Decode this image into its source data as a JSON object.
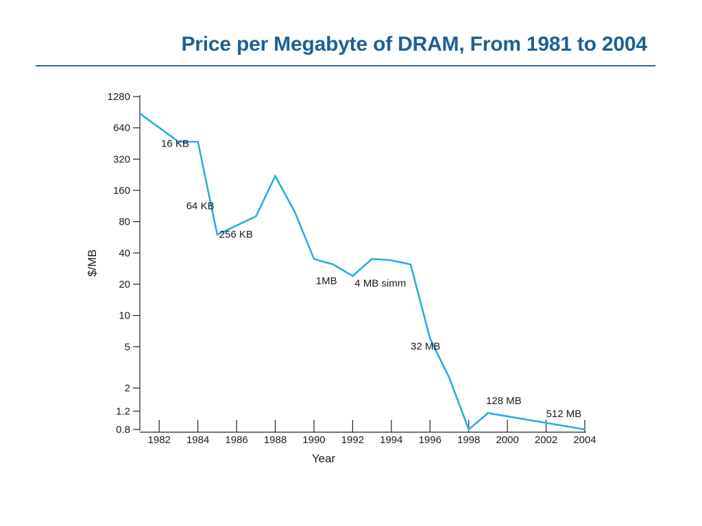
{
  "slide": {
    "title": "Price per Megabyte of DRAM, From 1981 to 2004",
    "title_color": "#1f5f94"
  },
  "chart_data": {
    "type": "line",
    "title": "",
    "xlabel": "Year",
    "ylabel": "$/MB",
    "yscale": "log",
    "ylim": [
      0.8,
      1280
    ],
    "xlim": [
      1981,
      2004
    ],
    "y_ticks": [
      {
        "value": 1280,
        "label": "1280"
      },
      {
        "value": 640,
        "label": "640"
      },
      {
        "value": 320,
        "label": "320"
      },
      {
        "value": 160,
        "label": "160"
      },
      {
        "value": 80,
        "label": "80"
      },
      {
        "value": 40,
        "label": "40"
      },
      {
        "value": 20,
        "label": "20"
      },
      {
        "value": 10,
        "label": "10"
      },
      {
        "value": 5,
        "label": "5"
      },
      {
        "value": 2,
        "label": "2"
      },
      {
        "value": 1.2,
        "label": "1.2"
      },
      {
        "value": 0.8,
        "label": "0.8"
      }
    ],
    "x_ticks": [
      {
        "value": 1982,
        "label": "1982"
      },
      {
        "value": 1984,
        "label": "1984"
      },
      {
        "value": 1986,
        "label": "1986"
      },
      {
        "value": 1988,
        "label": "1988"
      },
      {
        "value": 1990,
        "label": "1990"
      },
      {
        "value": 1992,
        "label": "1992"
      },
      {
        "value": 1994,
        "label": "1994"
      },
      {
        "value": 1996,
        "label": "1996"
      },
      {
        "value": 1998,
        "label": "1998"
      },
      {
        "value": 2000,
        "label": "2000"
      },
      {
        "value": 2002,
        "label": "2002"
      },
      {
        "value": 2004,
        "label": "2004"
      }
    ],
    "grid": false,
    "line_color": "#29abe2",
    "series": [
      {
        "points": [
          {
            "x": 1981,
            "y": 880
          },
          {
            "x": 1983,
            "y": 470
          },
          {
            "x": 1984,
            "y": 470
          },
          {
            "x": 1985,
            "y": 60
          },
          {
            "x": 1987,
            "y": 90
          },
          {
            "x": 1988,
            "y": 220
          },
          {
            "x": 1989,
            "y": 100
          },
          {
            "x": 1990,
            "y": 35
          },
          {
            "x": 1991,
            "y": 31
          },
          {
            "x": 1992,
            "y": 24
          },
          {
            "x": 1993,
            "y": 35
          },
          {
            "x": 1994,
            "y": 34
          },
          {
            "x": 1995,
            "y": 31
          },
          {
            "x": 1996,
            "y": 6
          },
          {
            "x": 1997,
            "y": 2.5
          },
          {
            "x": 1998,
            "y": 0.8
          },
          {
            "x": 1999,
            "y": 1.15
          },
          {
            "x": 2004,
            "y": 0.8
          }
        ]
      }
    ],
    "annotations": [
      {
        "text": "16 KB",
        "x": 1982.1,
        "y": 420
      },
      {
        "text": "64 KB",
        "x": 1983.4,
        "y": 105
      },
      {
        "text": "256 KB",
        "x": 1985.1,
        "y": 56
      },
      {
        "text": "1MB",
        "x": 1990.1,
        "y": 20
      },
      {
        "text": "4 MB simm",
        "x": 1992.1,
        "y": 19
      },
      {
        "text": "32 MB",
        "x": 1995.0,
        "y": 4.7
      },
      {
        "text": "128 MB",
        "x": 1998.9,
        "y": 1.4
      },
      {
        "text": "512 MB",
        "x": 2002.0,
        "y": 1.05
      }
    ]
  }
}
